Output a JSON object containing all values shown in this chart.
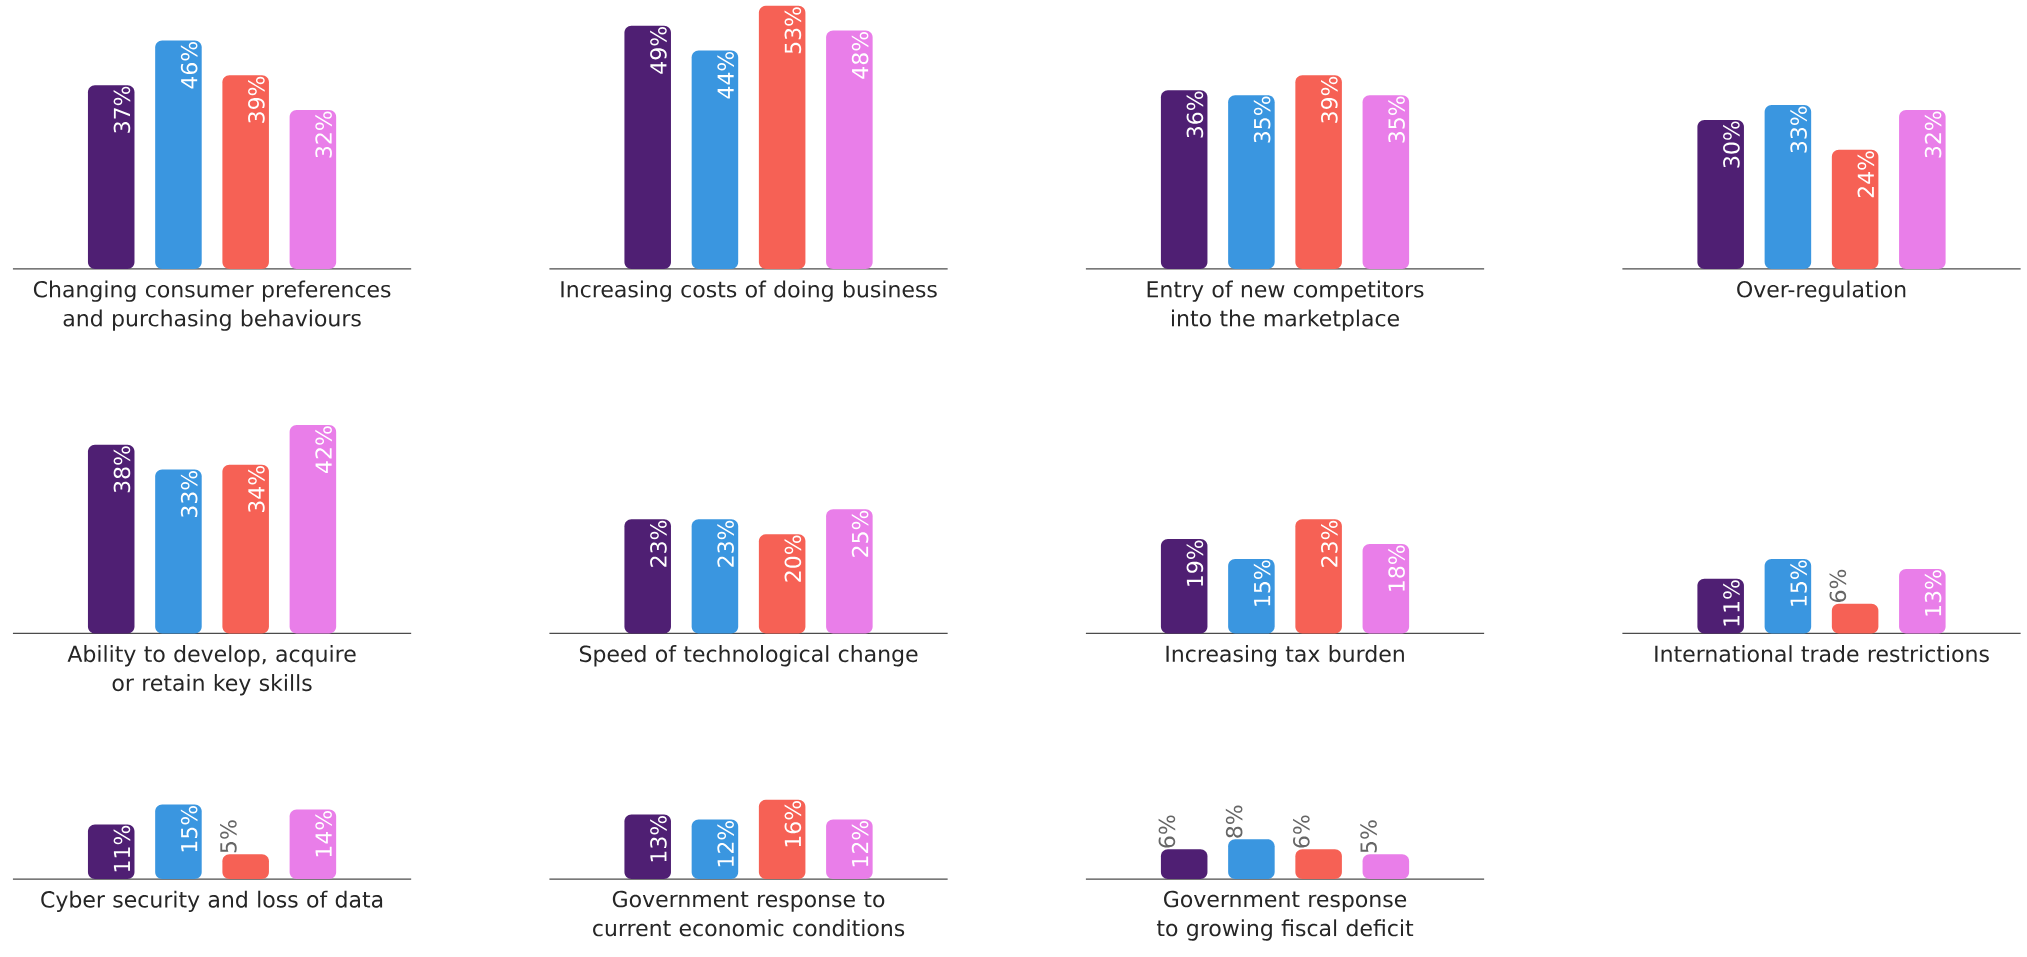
{
  "chart_data": [
    {
      "type": "bar",
      "xlabel": "Changing consumer preferences and purchasing behaviours",
      "categories": [
        null,
        null,
        null,
        null
      ],
      "values": [
        37,
        46,
        39,
        32
      ],
      "value_labels": [
        "37%",
        "46%",
        "39%",
        "32%"
      ],
      "colors": [
        "#4f1f73",
        "#3a96e0",
        "#f66155",
        "#e97ee9"
      ],
      "tick_labels": false
    },
    {
      "type": "bar",
      "xlabel": "Increasing costs of doing business",
      "categories": [
        null,
        null,
        null,
        null
      ],
      "values": [
        49,
        44,
        53,
        48
      ],
      "value_labels": [
        "49%",
        "44%",
        "53%",
        "48%"
      ],
      "colors": [
        "#4f1f73",
        "#3a96e0",
        "#f66155",
        "#e97ee9"
      ],
      "tick_labels": false
    },
    {
      "type": "bar",
      "xlabel": "Entry of new competitors into the marketplace",
      "categories": [
        null,
        null,
        null,
        null
      ],
      "values": [
        36,
        35,
        39,
        35
      ],
      "value_labels": [
        "36%",
        "35%",
        "39%",
        "35%"
      ],
      "colors": [
        "#4f1f73",
        "#3a96e0",
        "#f66155",
        "#e97ee9"
      ],
      "tick_labels": false
    },
    {
      "type": "bar",
      "xlabel": "Over-regulation",
      "categories": [
        null,
        null,
        null,
        null
      ],
      "values": [
        30,
        33,
        24,
        32
      ],
      "value_labels": [
        "30%",
        "33%",
        "24%",
        "32%"
      ],
      "colors": [
        "#4f1f73",
        "#3a96e0",
        "#f66155",
        "#e97ee9"
      ],
      "tick_labels": false
    },
    {
      "type": "bar",
      "xlabel": "Ability to develop, acquire or retain key skills",
      "categories": [
        null,
        null,
        null,
        null
      ],
      "values": [
        38,
        33,
        34,
        42
      ],
      "value_labels": [
        "38%",
        "33%",
        "34%",
        "42%"
      ],
      "colors": [
        "#4f1f73",
        "#3a96e0",
        "#f66155",
        "#e97ee9"
      ],
      "tick_labels": false
    },
    {
      "type": "bar",
      "xlabel": "Speed of technological change",
      "categories": [
        null,
        null,
        null,
        null
      ],
      "values": [
        23,
        23,
        20,
        25
      ],
      "value_labels": [
        "23%",
        "23%",
        "20%",
        "25%"
      ],
      "colors": [
        "#4f1f73",
        "#3a96e0",
        "#f66155",
        "#e97ee9"
      ],
      "tick_labels": false
    },
    {
      "type": "bar",
      "xlabel": "Increasing tax burden",
      "categories": [
        null,
        null,
        null,
        null
      ],
      "values": [
        19,
        15,
        23,
        18
      ],
      "value_labels": [
        "19%",
        "15%",
        "23%",
        "18%"
      ],
      "colors": [
        "#4f1f73",
        "#3a96e0",
        "#f66155",
        "#e97ee9"
      ],
      "tick_labels": false
    },
    {
      "type": "bar",
      "xlabel": "International trade restrictions",
      "categories": [
        null,
        null,
        null,
        null
      ],
      "values": [
        11,
        15,
        6,
        13
      ],
      "value_labels": [
        "11%",
        "15%",
        "6%",
        "13%"
      ],
      "colors": [
        "#4f1f73",
        "#3a96e0",
        "#f66155",
        "#e97ee9"
      ],
      "tick_labels": false
    },
    {
      "type": "bar",
      "xlabel": "Cyber security and loss of data",
      "categories": [
        null,
        null,
        null,
        null
      ],
      "values": [
        11,
        15,
        5,
        14
      ],
      "value_labels": [
        "11%",
        "15%",
        "5%",
        "14%"
      ],
      "colors": [
        "#4f1f73",
        "#3a96e0",
        "#f66155",
        "#e97ee9"
      ],
      "tick_labels": false
    },
    {
      "type": "bar",
      "xlabel": "Government response to current economic conditions",
      "categories": [
        null,
        null,
        null,
        null
      ],
      "values": [
        13,
        12,
        16,
        12
      ],
      "value_labels": [
        "13%",
        "12%",
        "16%",
        "12%"
      ],
      "colors": [
        "#4f1f73",
        "#3a96e0",
        "#f66155",
        "#e97ee9"
      ],
      "tick_labels": false
    },
    {
      "type": "bar",
      "xlabel": "Government response to growing fiscal deficit",
      "categories": [
        null,
        null,
        null,
        null
      ],
      "values": [
        6,
        8,
        6,
        5
      ],
      "value_labels": [
        "6%",
        "8%",
        "6%",
        "5%"
      ],
      "colors": [
        "#4f1f73",
        "#3a96e0",
        "#f66155",
        "#e97ee9"
      ],
      "tick_labels": false
    }
  ]
}
